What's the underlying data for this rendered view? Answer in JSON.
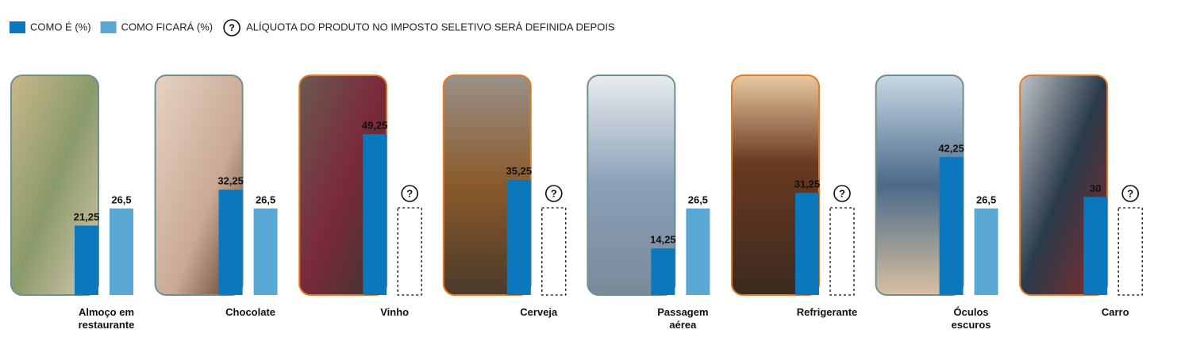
{
  "chart_data": {
    "type": "bar",
    "categories": [
      "Almoço em restaurante",
      "Chocolate",
      "Vinho",
      "Cerveja",
      "Passagem aérea",
      "Refrigerante",
      "Óculos escuros",
      "Carro"
    ],
    "series": [
      {
        "name": "COMO É (%)",
        "color": "#0b78bd",
        "values": [
          21.25,
          32.25,
          49.25,
          35.25,
          14.25,
          31.25,
          42.25,
          30
        ],
        "value_labels": [
          "21,25",
          "32,25",
          "49,25",
          "35,25",
          "14,25",
          "31,25",
          "42,25",
          "30"
        ]
      },
      {
        "name": "COMO FICARÁ (%)",
        "color": "#5aa8d6",
        "values": [
          26.5,
          26.5,
          null,
          null,
          26.5,
          null,
          26.5,
          null
        ],
        "value_labels": [
          "26,5",
          "26,5",
          "?",
          "?",
          "26,5",
          "?",
          "26,5",
          "?"
        ]
      }
    ],
    "undefined_legend": {
      "symbol": "?",
      "label": "ALÍQUOTA DO PRODUTO NO IMPOSTO SELETIVO SERÁ DEFINIDA DEPOIS"
    },
    "ylim": [
      0,
      50
    ]
  }
}
